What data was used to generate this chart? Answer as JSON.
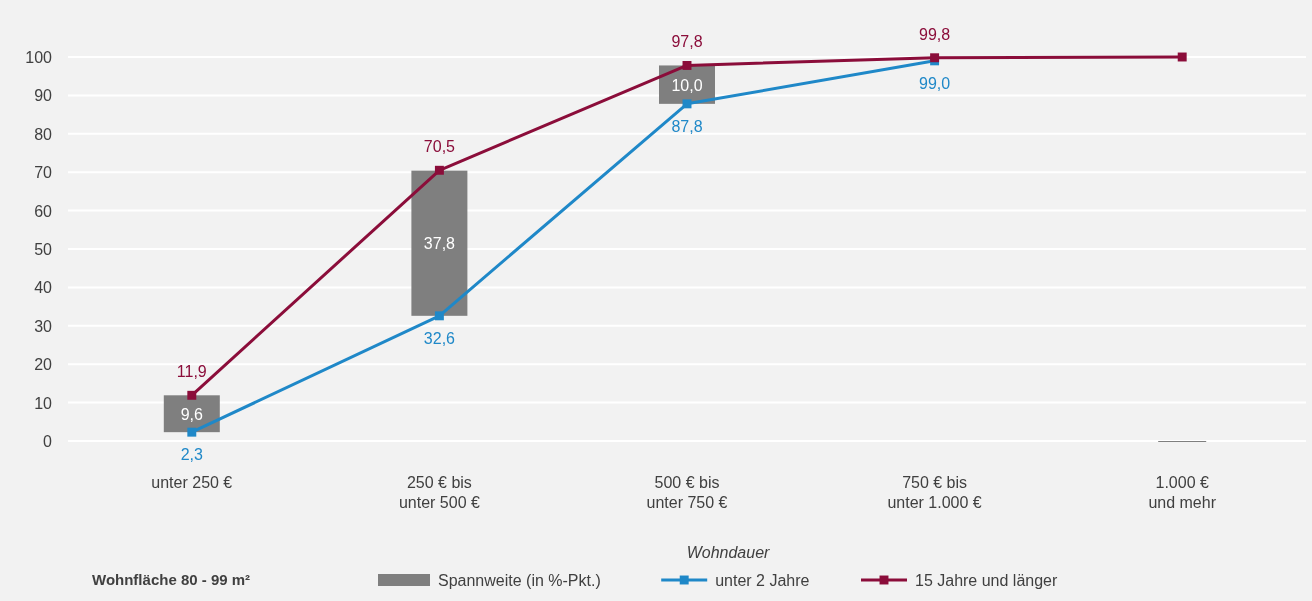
{
  "chart_data": {
    "type": "line",
    "categories": [
      "unter 250 €",
      "250 €  bis\nunter 500 €",
      "500 €  bis\nunter 750 €",
      "750 €  bis\nunter 1.000 €",
      "1.000 €\nund mehr"
    ],
    "series": [
      {
        "type": "bar",
        "name": "Spannweite (in %-Pkt.)",
        "color": "#7f7f7f",
        "base": [
          2.3,
          32.6,
          87.8,
          null,
          0
        ],
        "values": [
          9.6,
          37.8,
          10.0,
          null,
          0
        ],
        "value_labels": [
          "9,6",
          "37,8",
          "10,0",
          null,
          null
        ]
      },
      {
        "name": "unter 2 Jahre",
        "color": "#1f88c8",
        "values": [
          2.3,
          32.6,
          87.8,
          99.0,
          null
        ],
        "value_labels": [
          "2,3",
          "32,6",
          "87,8",
          "99,0",
          null
        ]
      },
      {
        "name": "15 Jahre und länger",
        "color": "#8b0d3a",
        "values": [
          11.9,
          70.5,
          97.8,
          99.8,
          100
        ],
        "value_labels": [
          "11,9",
          "70,5",
          "97,8",
          "99,8",
          null
        ]
      }
    ],
    "ylim": [
      0,
      100
    ],
    "yticks": [
      0,
      10,
      20,
      30,
      40,
      50,
      60,
      70,
      80,
      90,
      100
    ],
    "grid": "y",
    "marker": "square",
    "line_style": "solid",
    "legend": "bottom",
    "legend_title": "Wohndauer",
    "annotations": [
      "Wohnfläche 80 - 99 m²"
    ]
  }
}
